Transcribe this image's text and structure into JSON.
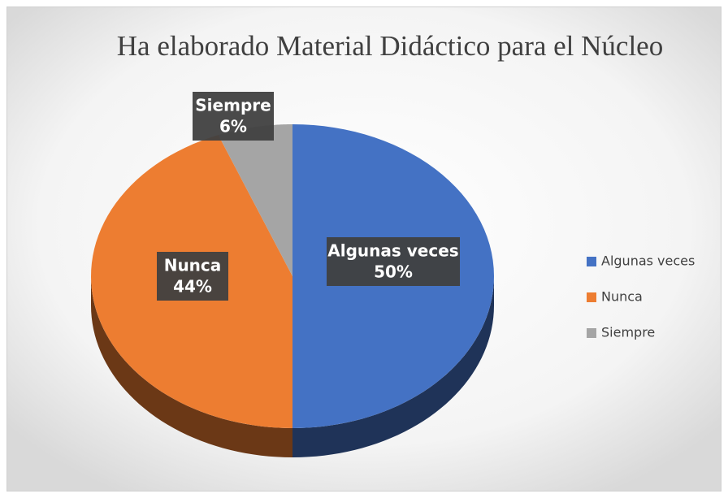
{
  "chart_data": {
    "type": "pie",
    "title": "Ha elaborado Material Didáctico para el Núcleo",
    "categories": [
      "Algunas veces",
      "Nunca",
      "Siempre"
    ],
    "values": [
      50,
      44,
      6
    ],
    "value_labels": [
      "50%",
      "44%",
      "6%"
    ],
    "colors": [
      "#4472c4",
      "#ed7d31",
      "#a5a5a5"
    ],
    "legend": "right"
  }
}
